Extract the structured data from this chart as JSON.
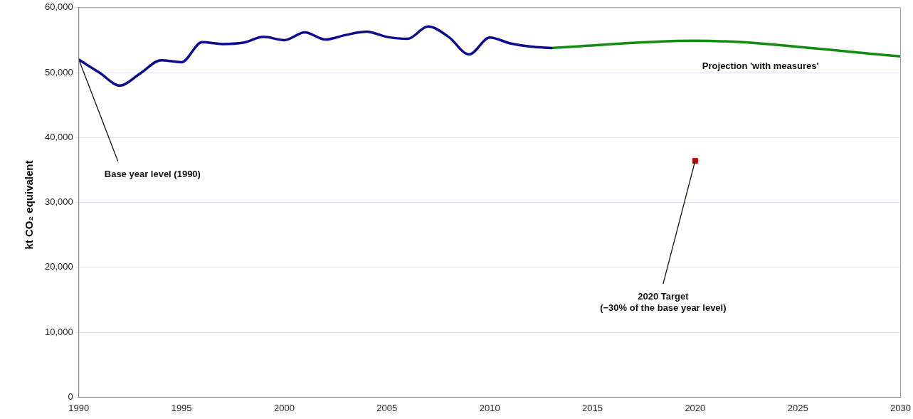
{
  "chart_data": {
    "type": "line",
    "ylabel": "kt CO₂ equivalent",
    "xlim": [
      1990,
      2030
    ],
    "xticks": [
      1990,
      1995,
      2000,
      2005,
      2010,
      2015,
      2020,
      2025,
      2030
    ],
    "ylim": [
      0,
      60000
    ],
    "yticks": [
      0,
      {
        "value": 10000,
        "label": "10,000"
      },
      {
        "value": 20000,
        "label": "20,000"
      },
      {
        "value": 30000,
        "label": "30,000"
      },
      {
        "value": 40000,
        "label": "40,000"
      },
      {
        "value": 50000,
        "label": "50,000"
      },
      {
        "value": 60000,
        "label": "60,000"
      }
    ],
    "grid": "y",
    "legend": false,
    "marker": "none",
    "series": [
      {
        "color": "#0c0c8c",
        "x": [
          1990,
          1991,
          1992,
          1993,
          1994,
          1995,
          1996,
          1997,
          1998,
          1999,
          2000,
          2001,
          2002,
          2003,
          2004,
          2005,
          2006,
          2007,
          2008,
          2009,
          2010,
          2011,
          2012,
          2013
        ],
        "values": [
          52000,
          50000,
          48000,
          49900,
          51900,
          51600,
          54700,
          54400,
          54600,
          55500,
          55000,
          56200,
          55100,
          55800,
          56300,
          55500,
          55200,
          57100,
          55500,
          52800,
          55400,
          54500,
          54000,
          53800
        ]
      },
      {
        "name": "Projection 'with measures'",
        "color": "#138c13",
        "x": [
          2013,
          2020,
          2030
        ],
        "values": [
          53800,
          54900,
          52500
        ]
      },
      {
        "type": "scatter",
        "marker": "square",
        "color": "#cc0000",
        "x": [
          2020
        ],
        "values": [
          36400
        ]
      }
    ],
    "annotations": [
      {
        "text": "Base year level (1990)",
        "x": 1990,
        "y": 52000
      },
      {
        "text": "2020 Target\n(−30% of the base year level)",
        "x": 2020,
        "y": 36400
      }
    ]
  }
}
